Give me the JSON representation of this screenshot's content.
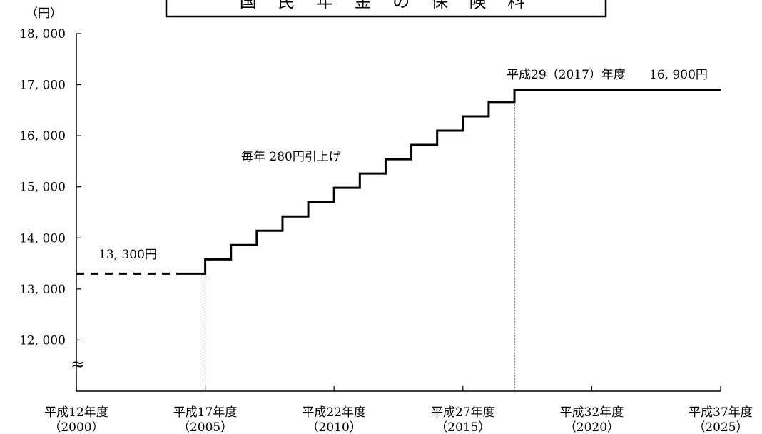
{
  "chart_data": {
    "type": "line",
    "step": true,
    "title": "国 民 年 金 の 保 険 料",
    "unit_label": "（円）",
    "axis_break_symbol": "≈",
    "x_range": [
      2000,
      2025
    ],
    "y_range": [
      11000,
      18000
    ],
    "y_ticks": [
      {
        "value": 18000,
        "label": "18, 000"
      },
      {
        "value": 17000,
        "label": "17, 000"
      },
      {
        "value": 16000,
        "label": "16, 000"
      },
      {
        "value": 15000,
        "label": "15, 000"
      },
      {
        "value": 14000,
        "label": "14, 000"
      },
      {
        "value": 13000,
        "label": "13, 000"
      },
      {
        "value": 12000,
        "label": "12, 000"
      }
    ],
    "x_ticks": [
      {
        "value": 2000,
        "line1": "平成12年度",
        "line2": "（2000）"
      },
      {
        "value": 2005,
        "line1": "平成17年度",
        "line2": "（2005）"
      },
      {
        "value": 2010,
        "line1": "平成22年度",
        "line2": "（2010）"
      },
      {
        "value": 2015,
        "line1": "平成27年度",
        "line2": "（2015）"
      },
      {
        "value": 2020,
        "line1": "平成32年度",
        "line2": "（2020）"
      },
      {
        "value": 2025,
        "line1": "平成37年度",
        "line2": "（2025）"
      }
    ],
    "flat_segment": {
      "x_start": 2000,
      "x_end": 2005,
      "value": 13300,
      "style": "dashed"
    },
    "steps": [
      {
        "year": 2005,
        "value": 13580
      },
      {
        "year": 2006,
        "value": 13860
      },
      {
        "year": 2007,
        "value": 14140
      },
      {
        "year": 2008,
        "value": 14420
      },
      {
        "year": 2009,
        "value": 14700
      },
      {
        "year": 2010,
        "value": 14980
      },
      {
        "year": 2011,
        "value": 15260
      },
      {
        "year": 2012,
        "value": 15540
      },
      {
        "year": 2013,
        "value": 15820
      },
      {
        "year": 2014,
        "value": 16100
      },
      {
        "year": 2015,
        "value": 16380
      },
      {
        "year": 2016,
        "value": 16660
      },
      {
        "year": 2017,
        "value": 16900
      }
    ],
    "final_segment": {
      "x_end": 2025,
      "value": 16900
    },
    "reference_lines": [
      2005,
      2017
    ],
    "annotations": {
      "start_value": "13, 300円",
      "increment": "毎年 280円引上げ",
      "final_year": "平成29（2017）年度",
      "final_value": "16, 900円"
    }
  }
}
